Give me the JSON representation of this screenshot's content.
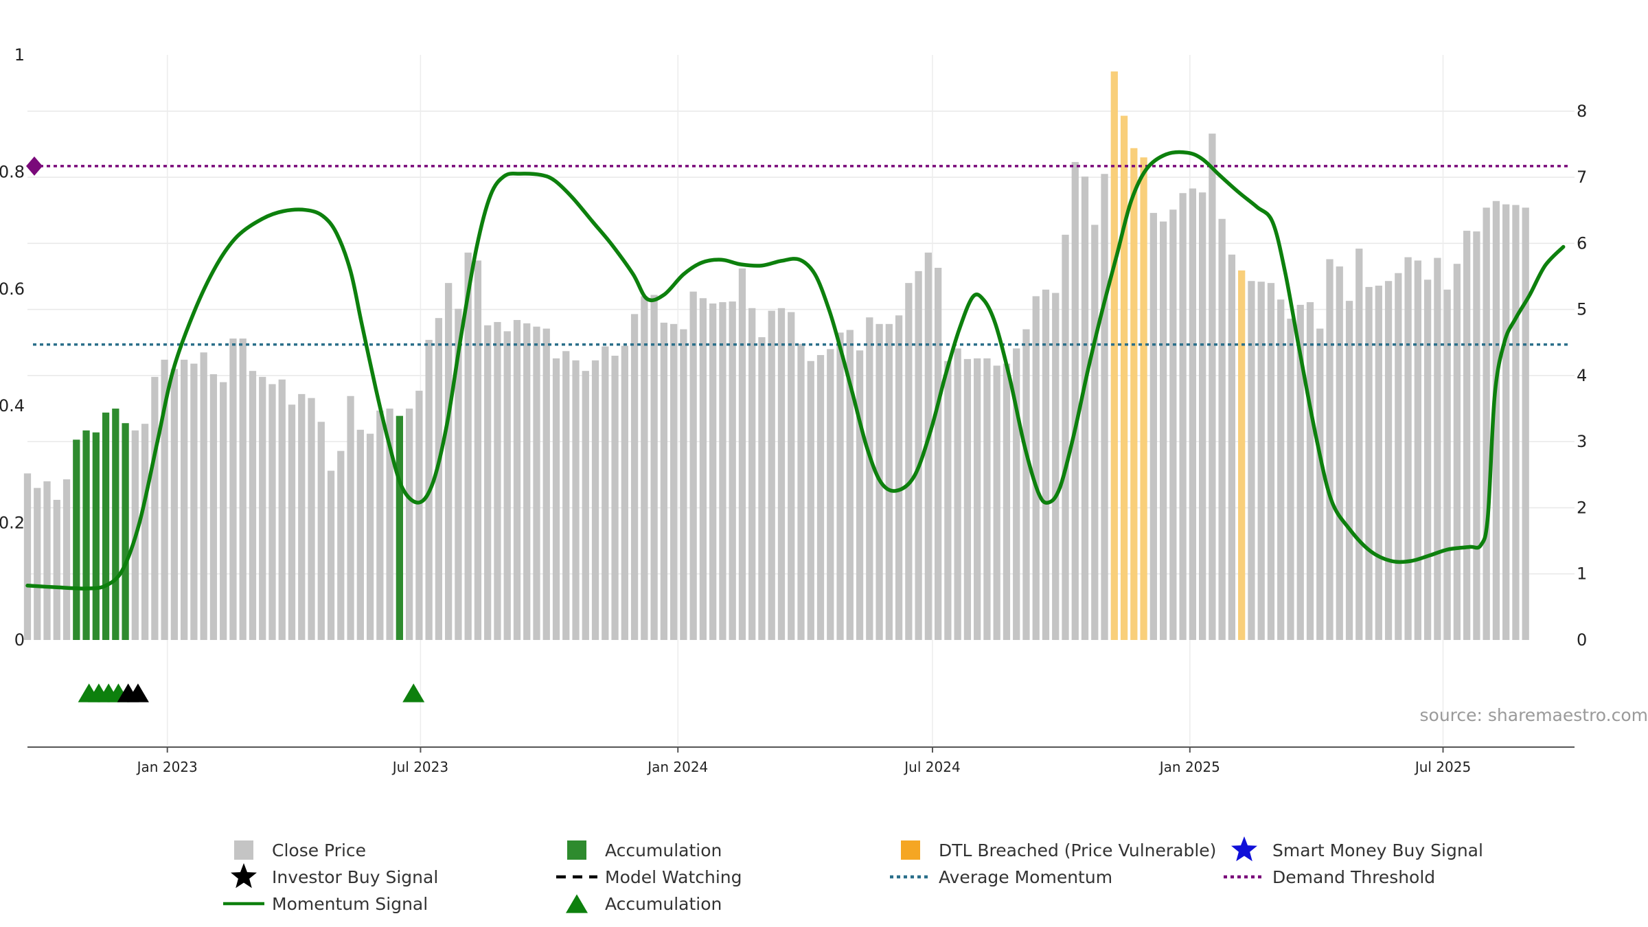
{
  "chart_data": {
    "type": "bar",
    "source": "source: sharemaestro.com",
    "colors": {
      "close_price": "#c4c4c4",
      "accumulation": "#2e8b2e",
      "dtl_breached": "#f9cf7a",
      "dtl_breached_solid": "#f5a623",
      "momentum": "#0d800d",
      "investor_buy": "#000000",
      "smart_money": "#1010d8",
      "average_momentum": "#2a6f8a",
      "demand_threshold": "#7a0a7a",
      "grid": "#e8e8e8"
    },
    "left_axis": {
      "ylim": [
        0,
        1
      ],
      "ticks": [
        0,
        0.2,
        0.4,
        0.6,
        0.8,
        1
      ],
      "tick_labels": [
        "0",
        "0.2",
        "0.4",
        "0.6",
        "0.8",
        "1"
      ]
    },
    "right_axis": {
      "ylim": [
        0,
        8.85
      ],
      "ticks": [
        0,
        1,
        2,
        3,
        4,
        5,
        6,
        7,
        8
      ],
      "tick_labels": [
        "0",
        "1",
        "2",
        "3",
        "4",
        "5",
        "6",
        "7",
        "8"
      ]
    },
    "x_range": [
      "2022-09-23",
      "2025-10-03"
    ],
    "x_ticks": [
      {
        "date": "2023-01-01",
        "label": "Jan 2023"
      },
      {
        "date": "2023-07-01",
        "label": "Jul 2023"
      },
      {
        "date": "2024-01-01",
        "label": "Jan 2024"
      },
      {
        "date": "2024-07-01",
        "label": "Jul 2024"
      },
      {
        "date": "2025-01-01",
        "label": "Jan 2025"
      },
      {
        "date": "2025-07-01",
        "label": "Jul 2025"
      }
    ],
    "bars_start_date": "2022-09-23",
    "bars_interval_days": 7,
    "close_prices": [
      2.52,
      2.3,
      2.4,
      2.12,
      2.43,
      3.03,
      3.17,
      3.14,
      3.44,
      3.5,
      3.28,
      3.17,
      3.27,
      3.98,
      4.24,
      4.1,
      4.24,
      4.18,
      4.35,
      4.02,
      3.9,
      4.56,
      4.56,
      4.07,
      3.98,
      3.87,
      3.94,
      3.56,
      3.72,
      3.66,
      3.3,
      2.56,
      2.86,
      3.69,
      3.18,
      3.12,
      3.47,
      3.5,
      3.39,
      3.5,
      3.77,
      4.54,
      4.87,
      5.4,
      5.01,
      5.86,
      5.74,
      4.76,
      4.81,
      4.67,
      4.84,
      4.79,
      4.74,
      4.71,
      4.26,
      4.37,
      4.23,
      4.07,
      4.23,
      4.44,
      4.3,
      4.45,
      4.93,
      5.2,
      5.22,
      4.8,
      4.78,
      4.7,
      5.27,
      5.17,
      5.09,
      5.11,
      5.12,
      5.62,
      5.02,
      4.58,
      4.98,
      5.02,
      4.96,
      4.48,
      4.22,
      4.31,
      4.4,
      4.65,
      4.69,
      4.38,
      4.88,
      4.78,
      4.78,
      4.91,
      5.4,
      5.58,
      5.86,
      5.63,
      4.22,
      4.41,
      4.25,
      4.26,
      4.26,
      4.15,
      4.18,
      4.41,
      4.7,
      5.2,
      5.3,
      5.25,
      6.13,
      7.23,
      7.01,
      6.28,
      7.05,
      8.6,
      7.93,
      7.44,
      7.3,
      6.46,
      6.33,
      6.51,
      6.76,
      6.83,
      6.77,
      7.66,
      6.37,
      5.83,
      5.59,
      5.43,
      5.42,
      5.4,
      5.15,
      4.86,
      5.07,
      5.11,
      4.71,
      5.76,
      5.65,
      5.13,
      5.92,
      5.34,
      5.36,
      5.43,
      5.55,
      5.79,
      5.74,
      5.45,
      5.78,
      5.3,
      5.69,
      6.19,
      6.18,
      6.54,
      6.64,
      6.59,
      6.58,
      6.54
    ],
    "accumulation_bar_indices": [
      5,
      6,
      7,
      8,
      9,
      10,
      38
    ],
    "dtl_breached_bar_indices": [
      111,
      112,
      113,
      114,
      124
    ],
    "momentum_signal": [
      [
        "2022-09-23",
        0.093
      ],
      [
        "2022-10-14",
        0.09
      ],
      [
        "2022-11-04",
        0.088
      ],
      [
        "2022-11-18",
        0.093
      ],
      [
        "2022-11-30",
        0.12
      ],
      [
        "2022-12-12",
        0.2
      ],
      [
        "2022-12-25",
        0.34
      ],
      [
        "2023-01-05",
        0.46
      ],
      [
        "2023-01-20",
        0.56
      ],
      [
        "2023-02-05",
        0.64
      ],
      [
        "2023-02-20",
        0.69
      ],
      [
        "2023-03-10",
        0.72
      ],
      [
        "2023-03-25",
        0.733
      ],
      [
        "2023-04-10",
        0.735
      ],
      [
        "2023-04-22",
        0.725
      ],
      [
        "2023-05-02",
        0.695
      ],
      [
        "2023-05-12",
        0.63
      ],
      [
        "2023-05-20",
        0.54
      ],
      [
        "2023-05-30",
        0.43
      ],
      [
        "2023-06-08",
        0.34
      ],
      [
        "2023-06-18",
        0.26
      ],
      [
        "2023-06-30",
        0.235
      ],
      [
        "2023-07-10",
        0.27
      ],
      [
        "2023-07-20",
        0.37
      ],
      [
        "2023-07-30",
        0.52
      ],
      [
        "2023-08-10",
        0.67
      ],
      [
        "2023-08-20",
        0.76
      ],
      [
        "2023-08-30",
        0.793
      ],
      [
        "2023-09-10",
        0.797
      ],
      [
        "2023-09-25",
        0.795
      ],
      [
        "2023-10-05",
        0.785
      ],
      [
        "2023-10-18",
        0.755
      ],
      [
        "2023-11-01",
        0.715
      ],
      [
        "2023-11-15",
        0.675
      ],
      [
        "2023-11-30",
        0.625
      ],
      [
        "2023-12-10",
        0.583
      ],
      [
        "2023-12-22",
        0.59
      ],
      [
        "2024-01-05",
        0.625
      ],
      [
        "2024-01-18",
        0.645
      ],
      [
        "2024-02-01",
        0.65
      ],
      [
        "2024-02-15",
        0.642
      ],
      [
        "2024-03-01",
        0.64
      ],
      [
        "2024-03-15",
        0.648
      ],
      [
        "2024-03-28",
        0.65
      ],
      [
        "2024-04-08",
        0.625
      ],
      [
        "2024-04-18",
        0.565
      ],
      [
        "2024-04-26",
        0.5
      ],
      [
        "2024-05-05",
        0.42
      ],
      [
        "2024-05-15",
        0.33
      ],
      [
        "2024-05-25",
        0.27
      ],
      [
        "2024-06-05",
        0.255
      ],
      [
        "2024-06-18",
        0.28
      ],
      [
        "2024-06-30",
        0.36
      ],
      [
        "2024-07-10",
        0.45
      ],
      [
        "2024-07-20",
        0.53
      ],
      [
        "2024-07-30",
        0.587
      ],
      [
        "2024-08-07",
        0.58
      ],
      [
        "2024-08-15",
        0.54
      ],
      [
        "2024-08-25",
        0.45
      ],
      [
        "2024-09-05",
        0.33
      ],
      [
        "2024-09-15",
        0.25
      ],
      [
        "2024-09-22",
        0.235
      ],
      [
        "2024-09-30",
        0.26
      ],
      [
        "2024-10-10",
        0.35
      ],
      [
        "2024-10-20",
        0.46
      ],
      [
        "2024-10-30",
        0.56
      ],
      [
        "2024-11-10",
        0.66
      ],
      [
        "2024-11-20",
        0.75
      ],
      [
        "2024-12-01",
        0.805
      ],
      [
        "2024-12-15",
        0.83
      ],
      [
        "2024-12-30",
        0.833
      ],
      [
        "2025-01-10",
        0.822
      ],
      [
        "2025-01-22",
        0.795
      ],
      [
        "2025-02-05",
        0.765
      ],
      [
        "2025-02-18",
        0.74
      ],
      [
        "2025-03-01",
        0.715
      ],
      [
        "2025-03-10",
        0.63
      ],
      [
        "2025-03-20",
        0.5
      ],
      [
        "2025-04-01",
        0.35
      ],
      [
        "2025-04-12",
        0.24
      ],
      [
        "2025-04-25",
        0.19
      ],
      [
        "2025-05-10",
        0.152
      ],
      [
        "2025-05-25",
        0.135
      ],
      [
        "2025-06-08",
        0.135
      ],
      [
        "2025-06-22",
        0.145
      ],
      [
        "2025-07-05",
        0.155
      ],
      [
        "2025-07-20",
        0.159
      ],
      [
        "2025-07-28",
        0.162
      ],
      [
        "2025-08-02",
        0.21
      ],
      [
        "2025-08-07",
        0.42
      ],
      [
        "2025-08-14",
        0.51
      ],
      [
        "2025-08-22",
        0.55
      ],
      [
        "2025-09-01",
        0.59
      ],
      [
        "2025-09-12",
        0.64
      ],
      [
        "2025-09-25",
        0.672
      ]
    ],
    "average_momentum": 0.505,
    "demand_threshold": 0.81,
    "accumulation_markers": [
      "2022-11-06",
      "2022-11-13",
      "2022-11-20",
      "2022-11-27",
      "2023-06-26"
    ],
    "investor_buy_markers": [
      "2022-12-04",
      "2022-12-11"
    ],
    "legend": [
      {
        "label": "Close Price",
        "marker": "square",
        "color": "#c4c4c4"
      },
      {
        "label": "Accumulation",
        "marker": "square",
        "color": "#2e8b2e"
      },
      {
        "label": "DTL Breached (Price Vulnerable)",
        "marker": "square",
        "color": "#f5a623"
      },
      {
        "label": "Smart Money Buy Signal",
        "marker": "star",
        "color": "#1010d8"
      },
      {
        "label": "Investor Buy Signal",
        "marker": "star",
        "color": "#000000"
      },
      {
        "label": "Model Watching",
        "marker": "dash-line",
        "color": "#000000"
      },
      {
        "label": "Average Momentum",
        "marker": "dot-line",
        "color": "#2a6f8a"
      },
      {
        "label": "Demand Threshold",
        "marker": "dot-line",
        "color": "#7a0a7a"
      },
      {
        "label": "Momentum Signal",
        "marker": "solid-line",
        "color": "#0d800d"
      },
      {
        "label": "Accumulation",
        "marker": "triangle",
        "color": "#0d800d"
      }
    ]
  }
}
